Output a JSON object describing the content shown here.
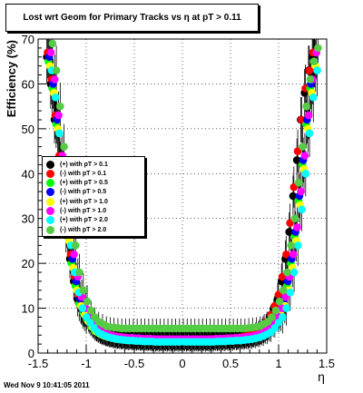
{
  "chart_data": {
    "type": "scatter",
    "title": "Lost wrt Geom for Primary Tracks vs   η at pT > 0.11",
    "xlabel": "η",
    "ylabel": "Efficiency (%)",
    "xlim": [
      -1.5,
      1.5
    ],
    "ylim": [
      0,
      70
    ],
    "xticks": [
      "-1.5",
      "-1",
      "-0.5",
      "0",
      "0.5",
      "1",
      "1.5"
    ],
    "yticks": [
      "0",
      "10",
      "20",
      "30",
      "40",
      "50",
      "60",
      "70"
    ],
    "grid": true,
    "legend_position": "middle-left",
    "x": [
      -1.38,
      -1.34,
      -1.3,
      -1.26,
      -1.22,
      -1.18,
      -1.14,
      -1.1,
      -1.06,
      -1.02,
      -0.98,
      -0.94,
      -0.9,
      -0.86,
      -0.82,
      -0.78,
      -0.74,
      -0.7,
      -0.66,
      -0.62,
      -0.58,
      -0.54,
      -0.5,
      -0.46,
      -0.42,
      -0.38,
      -0.34,
      -0.3,
      -0.26,
      -0.22,
      -0.18,
      -0.14,
      -0.1,
      -0.06,
      -0.02,
      0.02,
      0.06,
      0.1,
      0.14,
      0.18,
      0.22,
      0.26,
      0.3,
      0.34,
      0.38,
      0.42,
      0.46,
      0.5,
      0.54,
      0.58,
      0.62,
      0.66,
      0.7,
      0.74,
      0.78,
      0.82,
      0.86,
      0.9,
      0.94,
      0.98,
      1.02,
      1.06,
      1.1,
      1.14,
      1.18,
      1.22,
      1.26,
      1.3,
      1.34,
      1.38
    ],
    "series": [
      {
        "name": "(+) with pT > 0.1",
        "color": "#000000",
        "values": [
          66,
          60,
          52,
          43,
          35,
          27,
          21,
          16,
          12,
          10,
          8,
          6.5,
          5.5,
          4.8,
          4.3,
          4,
          3.8,
          3.6,
          3.5,
          3.4,
          3.3,
          3.2,
          3.2,
          3.1,
          3.1,
          3,
          3,
          3,
          3,
          3,
          3,
          3,
          3,
          3,
          3,
          3,
          3,
          3,
          3,
          3,
          3,
          3,
          3,
          3,
          3.1,
          3.1,
          3.2,
          3.2,
          3.3,
          3.4,
          3.5,
          3.6,
          3.8,
          4,
          4.3,
          4.8,
          5.5,
          6.5,
          8,
          10,
          12,
          16,
          21,
          27,
          35,
          43,
          52,
          58,
          63,
          66
        ]
      },
      {
        "name": "(-) with pT > 0.1",
        "color": "#ff0000",
        "values": [
          67,
          61,
          53,
          44,
          36,
          28,
          22,
          17,
          13,
          10.5,
          8.5,
          7,
          6,
          5.2,
          4.6,
          4.2,
          3.9,
          3.7,
          3.5,
          3.4,
          3.3,
          3.3,
          3.2,
          3.2,
          3.1,
          3.1,
          3.1,
          3,
          3,
          3,
          3,
          3,
          3,
          3,
          3,
          3,
          3,
          3,
          3,
          3,
          3,
          3,
          3.1,
          3.1,
          3.1,
          3.2,
          3.2,
          3.3,
          3.3,
          3.4,
          3.5,
          3.7,
          3.9,
          4.2,
          4.6,
          5.2,
          6,
          7,
          8.5,
          10.5,
          13,
          17,
          22,
          29,
          37,
          45,
          52,
          59,
          63,
          67
        ]
      },
      {
        "name": "(+) with pT > 0.5",
        "color": "#00ff00",
        "values": [
          65,
          59,
          51,
          42,
          34,
          26,
          20,
          15,
          11,
          9,
          7.5,
          6,
          5,
          4.5,
          4,
          3.7,
          3.5,
          3.3,
          3.2,
          3.1,
          3,
          3,
          2.9,
          2.9,
          2.8,
          2.8,
          2.8,
          2.7,
          2.7,
          2.7,
          2.7,
          2.7,
          2.7,
          2.7,
          2.7,
          2.7,
          2.7,
          2.7,
          2.7,
          2.7,
          2.7,
          2.7,
          2.7,
          2.8,
          2.8,
          2.8,
          2.9,
          2.9,
          3,
          3,
          3.1,
          3.2,
          3.3,
          3.5,
          3.7,
          4,
          4.5,
          5,
          6,
          7.5,
          9,
          11,
          15,
          20,
          26,
          34,
          42,
          51,
          59,
          65
        ]
      },
      {
        "name": "(-) with pT > 0.5",
        "color": "#0000ff",
        "values": [
          66,
          60,
          52,
          43,
          35,
          27,
          21,
          16,
          12,
          9.5,
          7.8,
          6.3,
          5.3,
          4.7,
          4.2,
          3.8,
          3.6,
          3.4,
          3.3,
          3.2,
          3.1,
          3.1,
          3,
          3,
          2.9,
          2.9,
          2.9,
          2.8,
          2.8,
          2.8,
          2.8,
          2.8,
          2.8,
          2.8,
          2.8,
          2.8,
          2.8,
          2.8,
          2.8,
          2.8,
          2.8,
          2.8,
          2.8,
          2.9,
          2.9,
          2.9,
          3,
          3,
          3.1,
          3.1,
          3.2,
          3.3,
          3.4,
          3.6,
          3.8,
          4.2,
          4.7,
          5.3,
          6.3,
          7.8,
          9.5,
          12,
          16,
          21,
          27,
          35,
          43,
          52,
          60,
          65
        ]
      },
      {
        "name": "(+) with pT > 1.0",
        "color": "#ffff00",
        "values": [
          64,
          58,
          50,
          41,
          33,
          25,
          19,
          14,
          10.5,
          8.5,
          7,
          5.8,
          4.8,
          4.3,
          3.9,
          3.6,
          3.4,
          3.2,
          3.1,
          3,
          2.9,
          2.9,
          2.8,
          2.8,
          2.7,
          2.7,
          2.7,
          2.6,
          2.6,
          2.6,
          2.6,
          2.6,
          2.6,
          2.6,
          2.6,
          2.6,
          2.6,
          2.6,
          2.6,
          2.6,
          2.6,
          2.6,
          2.6,
          2.7,
          2.7,
          2.7,
          2.8,
          2.8,
          2.9,
          2.9,
          3,
          3.1,
          3.2,
          3.4,
          3.6,
          3.9,
          4.3,
          4.8,
          5.8,
          7,
          8.5,
          10.5,
          14,
          19,
          25,
          33,
          41,
          50,
          58,
          64
        ]
      },
      {
        "name": "(-) with pT > 1.0",
        "color": "#ff00ff",
        "values": [
          67,
          61,
          53,
          44,
          36,
          28,
          22,
          17,
          12.5,
          10,
          8.2,
          6.7,
          5.7,
          5,
          4.5,
          4.1,
          3.9,
          3.7,
          3.6,
          3.5,
          3.4,
          3.4,
          3.3,
          3.3,
          3.2,
          3.2,
          3.2,
          3.1,
          3.1,
          3.1,
          3.1,
          3.1,
          3.1,
          3.1,
          3.1,
          3.1,
          3.1,
          3.1,
          3.1,
          3.1,
          3.1,
          3.1,
          3.1,
          3.2,
          3.2,
          3.2,
          3.3,
          3.3,
          3.4,
          3.4,
          3.5,
          3.6,
          3.7,
          3.9,
          4.1,
          4.5,
          5,
          5.7,
          6.7,
          8.2,
          10,
          12.5,
          17,
          22,
          28,
          36,
          44,
          53,
          61,
          67
        ]
      },
      {
        "name": "(+) with pT > 2.0",
        "color": "#00ffff",
        "values": [
          63,
          57,
          49,
          40,
          32,
          24,
          18,
          13.5,
          10,
          8,
          6.8,
          5.6,
          4.7,
          4.2,
          3.8,
          3.5,
          3.3,
          3.1,
          3,
          2.9,
          2.8,
          2.8,
          2.7,
          2.7,
          2.6,
          2.6,
          2.6,
          2.5,
          2.5,
          2.5,
          2.5,
          2.5,
          2.5,
          2.5,
          2.5,
          2.5,
          2.5,
          2.5,
          2.5,
          2.5,
          2.5,
          2.5,
          2.5,
          2.6,
          2.6,
          2.6,
          2.7,
          2.7,
          2.8,
          2.8,
          2.9,
          3,
          3.1,
          3.3,
          3.5,
          3.8,
          4.2,
          4.7,
          5.6,
          6.8,
          8,
          10,
          13.5,
          18,
          24,
          32,
          40,
          49,
          57,
          63
        ]
      },
      {
        "name": "(-) with pT > 2.0",
        "color": "#55cc44",
        "values": [
          69,
          63,
          55,
          46,
          38,
          30,
          24,
          18,
          14,
          11.5,
          9.5,
          8,
          7,
          6.5,
          6,
          5.8,
          5.7,
          5.6,
          5.5,
          5.5,
          5.5,
          5.5,
          5.5,
          5.5,
          5.5,
          5.5,
          5.5,
          5.5,
          5.5,
          5.5,
          5.5,
          5.5,
          5.5,
          5.5,
          5.5,
          5.5,
          5.5,
          5.5,
          5.5,
          5.5,
          5.5,
          5.5,
          5.5,
          5.5,
          5.5,
          5.5,
          5.5,
          5.5,
          5.5,
          5.5,
          5.5,
          5.6,
          5.7,
          5.8,
          6,
          6.5,
          7,
          8,
          9.5,
          11.5,
          14,
          18,
          24,
          30,
          38,
          46,
          55,
          61,
          65,
          68
        ]
      }
    ]
  },
  "footer": {
    "timestamp": "Wed Nov  9 10:41:05 2011"
  }
}
